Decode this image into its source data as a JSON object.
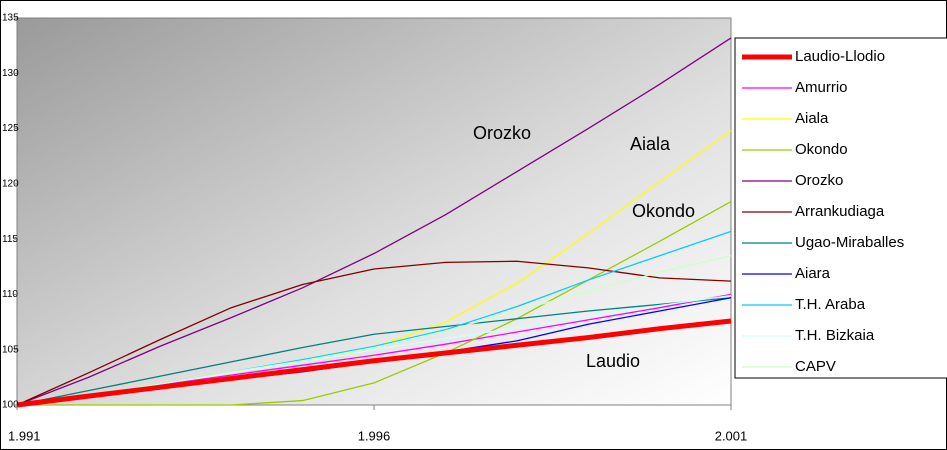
{
  "chart_data": {
    "type": "line",
    "x": [
      1991,
      1992,
      1993,
      1994,
      1995,
      1996,
      1997,
      1998,
      1999,
      2000,
      2001
    ],
    "xlim": [
      1991,
      2001
    ],
    "xticks": [
      {
        "value": 1991,
        "label": "1.991"
      },
      {
        "value": 1996,
        "label": "1.996"
      },
      {
        "value": 2001,
        "label": "2.001"
      }
    ],
    "ylim": [
      100,
      135
    ],
    "yticks": [
      100,
      105,
      110,
      115,
      120,
      125,
      130,
      135
    ],
    "grid": false,
    "legend": "right",
    "annotations": [
      "Orozko",
      "Aiala",
      "Okondo",
      "Laudio"
    ],
    "series": [
      {
        "name": "Laudio-Llodio",
        "color": "#ff0000",
        "width": 5,
        "values": [
          100,
          100.8,
          101.6,
          102.4,
          103.2,
          104,
          104.7,
          105.4,
          106.1,
          106.9,
          107.6
        ]
      },
      {
        "name": "Amurrio",
        "color": "#ff00ff",
        "width": 1.3,
        "values": [
          100,
          100.9,
          101.8,
          102.7,
          103.6,
          104.5,
          105.5,
          106.6,
          107.7,
          108.8,
          110
        ]
      },
      {
        "name": "Aiala",
        "color": "#ffff00",
        "width": 1.3,
        "values": [
          100,
          100.9,
          101.9,
          102.9,
          103.9,
          105.2,
          107.5,
          111,
          115.5,
          120.2,
          124.8
        ]
      },
      {
        "name": "Okondo",
        "color": "#99cc00",
        "width": 1.3,
        "values": [
          100,
          100,
          100,
          100,
          100.4,
          102,
          104.7,
          107.8,
          111.3,
          114.8,
          118.4
        ]
      },
      {
        "name": "Orozko",
        "color": "#800080",
        "width": 1.3,
        "values": [
          100,
          102.5,
          105.3,
          107.9,
          110.6,
          113.7,
          117.2,
          121.1,
          125,
          129,
          133.2
        ]
      },
      {
        "name": "Arrankudiaga",
        "color": "#800000",
        "width": 1.3,
        "values": [
          100,
          102.9,
          105.9,
          108.8,
          110.9,
          112.3,
          112.9,
          113,
          112.4,
          111.5,
          111.2
        ]
      },
      {
        "name": "Ugao-Miraballes",
        "color": "#008080",
        "width": 1.3,
        "values": [
          100,
          101.3,
          102.6,
          103.9,
          105.2,
          106.4,
          107.1,
          107.8,
          108.5,
          109.1,
          109.7
        ]
      },
      {
        "name": "Aiara",
        "color": "#0000ff",
        "width": 1.3,
        "values": [
          100,
          100.7,
          101.5,
          102.3,
          103,
          103.9,
          104.8,
          105.8,
          107.3,
          108.5,
          109.7
        ]
      },
      {
        "name": "T.H. Araba",
        "color": "#00ccff",
        "width": 1.3,
        "values": [
          100,
          100.9,
          101.9,
          103,
          104.1,
          105.3,
          106.8,
          108.9,
          111.3,
          113.5,
          115.7
        ]
      },
      {
        "name": "T.H. Bizkaia",
        "color": "#ccffff",
        "width": 1.3,
        "values": [
          100,
          100.9,
          101.9,
          102.9,
          103.9,
          105,
          106,
          107,
          108,
          109,
          109.9
        ]
      },
      {
        "name": "CAPV",
        "color": "#ccffcc",
        "width": 1.3,
        "values": [
          100,
          100.9,
          101.9,
          103,
          104,
          105.2,
          106.7,
          108.5,
          110.3,
          112,
          113.5
        ]
      }
    ]
  }
}
